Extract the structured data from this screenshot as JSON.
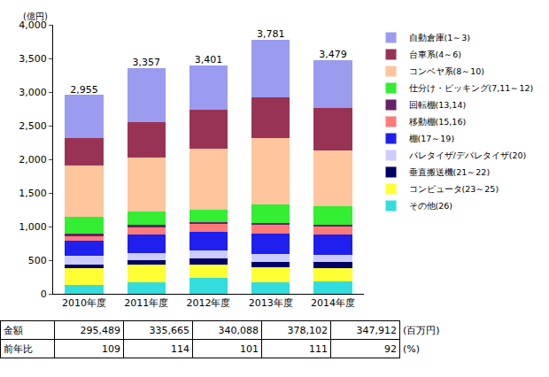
{
  "chart_data": {
    "type": "bar",
    "stacked": true,
    "grid": false,
    "legend": "right",
    "y_label": "(億円)",
    "categories": [
      "2010年度",
      "2011年度",
      "2012年度",
      "2013年度",
      "2014年度"
    ],
    "ylim": [
      0,
      4000
    ],
    "yticks": [
      0,
      500,
      {
        "value": 1000,
        "label": "1,000"
      },
      {
        "value": 1500,
        "label": "1,500"
      },
      {
        "value": 2000,
        "label": "2,000"
      },
      {
        "value": 2500,
        "label": "2,500"
      },
      {
        "value": 3000,
        "label": "3,000"
      },
      {
        "value": 3500,
        "label": "3,500"
      },
      {
        "value": 4000,
        "label": "4,000"
      }
    ],
    "series": [
      {
        "name": "自動倉庫(1～3)",
        "color": "#9b9bef",
        "values": [
          635,
          807,
          661,
          861,
          719
        ]
      },
      {
        "name": "台車系(4～6)",
        "color": "#993355",
        "values": [
          410,
          520,
          580,
          600,
          630
        ]
      },
      {
        "name": "コンベヤ系(8～10)",
        "color": "#ffc59c",
        "values": [
          770,
          810,
          910,
          990,
          830
        ]
      },
      {
        "name": "仕分け・ピッキング(7,11～12)",
        "color": "#33ee33",
        "values": [
          240,
          200,
          190,
          280,
          280
        ]
      },
      {
        "name": "回転棚(13,14)",
        "color": "#662266",
        "values": [
          40,
          30,
          20,
          30,
          20
        ]
      },
      {
        "name": "移動棚(15,16)",
        "color": "#ff7b7b",
        "values": [
          70,
          110,
          120,
          130,
          120
        ]
      },
      {
        "name": "棚(17～19)",
        "color": "#1f1fee",
        "values": [
          230,
          280,
          270,
          300,
          300
        ]
      },
      {
        "name": "パレタイザ/デパレタイザ(20)",
        "color": "#ccccff",
        "values": [
          120,
          100,
          120,
          110,
          110
        ]
      },
      {
        "name": "垂直搬送機(21～22)",
        "color": "#000066",
        "values": [
          60,
          60,
          90,
          90,
          90
        ]
      },
      {
        "name": "コンピュータ(23～25)",
        "color": "#ffff33",
        "values": [
          250,
          270,
          200,
          220,
          200
        ]
      },
      {
        "name": "その他(26)",
        "color": "#33dddd",
        "values": [
          130,
          170,
          240,
          170,
          180
        ]
      }
    ],
    "totals": {
      "values": [
        2955,
        3357,
        3401,
        3781,
        3479
      ],
      "value_labels": [
        "2,955",
        "3,357",
        "3,401",
        "3,781",
        "3,479"
      ]
    },
    "table": {
      "rows": [
        {
          "label": "金額",
          "cells": [
            "295,489",
            "335,665",
            "340,088",
            "378,102",
            "347,912"
          ],
          "unit": "(百万円)"
        },
        {
          "label": "前年比",
          "cells": [
            "109",
            "114",
            "101",
            "111",
            "92"
          ],
          "unit": "(%)"
        }
      ]
    }
  }
}
